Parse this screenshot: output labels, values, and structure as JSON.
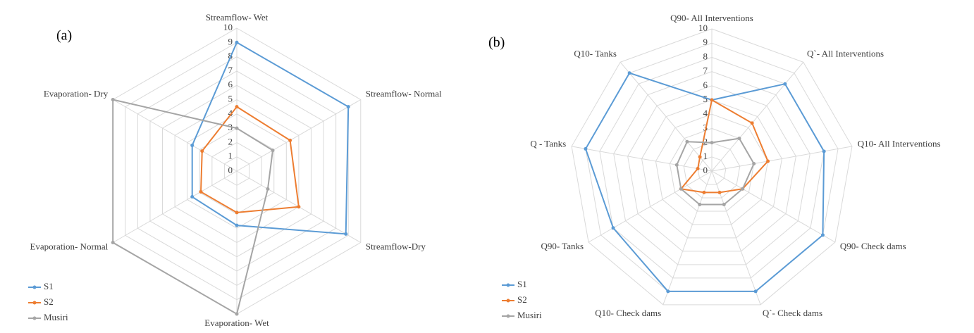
{
  "chart_data": [
    {
      "type": "radar",
      "panel_label": "(a)",
      "categories": [
        "Streamflow- Wet",
        "Streamflow- Normal",
        "Streamflow-Dry",
        "Evaporation- Wet",
        "Evaporation- Normal",
        "Evaporation- Dry"
      ],
      "series": [
        {
          "name": "S1",
          "color": "#5b9bd5",
          "values": [
            9,
            9,
            8.8,
            3.8,
            3.6,
            3.6
          ]
        },
        {
          "name": "S2",
          "color": "#ed7d31",
          "values": [
            4.5,
            4.3,
            5,
            2.9,
            2.9,
            2.8
          ]
        },
        {
          "name": "Musiri",
          "color": "#a5a5a5",
          "values": [
            3,
            2.9,
            2.5,
            10,
            10,
            10
          ]
        }
      ],
      "rlim": [
        0,
        10
      ],
      "rticks": [
        0,
        1,
        2,
        3,
        4,
        5,
        6,
        7,
        8,
        9,
        10
      ],
      "grid": true,
      "legend": "lower left"
    },
    {
      "type": "radar",
      "panel_label": "(b)",
      "categories": [
        "Q90- All Interventions",
        "Q`- All Interventions",
        "Q10- All Interventions",
        "Q90- Check dams",
        "Q`- Check dams",
        "Q10- Check dams",
        "Q90- Tanks",
        "Q - Tanks",
        "Q10- Tanks"
      ],
      "series": [
        {
          "name": "S1",
          "color": "#5b9bd5",
          "values": [
            5,
            8,
            8,
            9,
            9,
            9,
            8,
            9,
            9
          ]
        },
        {
          "name": "S2",
          "color": "#ed7d31",
          "values": [
            5,
            4.4,
            4,
            2.5,
            1.6,
            1.6,
            2.5,
            1,
            1.3
          ]
        },
        {
          "name": "Musiri",
          "color": "#a5a5a5",
          "values": [
            2,
            3,
            3,
            2.5,
            2.5,
            2.5,
            2.5,
            2.5,
            2.7
          ]
        }
      ],
      "rlim": [
        0,
        10
      ],
      "rticks": [
        0,
        1,
        2,
        3,
        4,
        5,
        6,
        7,
        8,
        9,
        10
      ],
      "grid": true,
      "legend": "lower left"
    }
  ]
}
